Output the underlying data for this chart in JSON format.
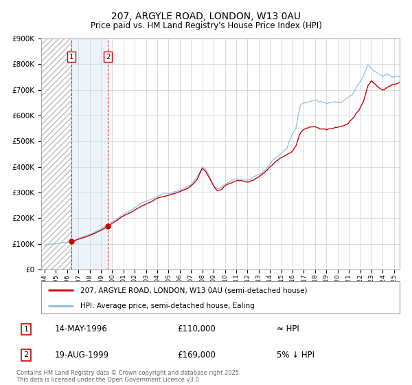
{
  "title": "207, ARGYLE ROAD, LONDON, W13 0AU",
  "subtitle": "Price paid vs. HM Land Registry's House Price Index (HPI)",
  "ylim": [
    0,
    900000
  ],
  "yticks": [
    0,
    100000,
    200000,
    300000,
    400000,
    500000,
    600000,
    700000,
    800000,
    900000
  ],
  "ytick_labels": [
    "£0",
    "£100K",
    "£200K",
    "£300K",
    "£400K",
    "£500K",
    "£600K",
    "£700K",
    "£800K",
    "£900K"
  ],
  "xlim_start": 1993.7,
  "xlim_end": 2025.5,
  "transactions": [
    {
      "num": 1,
      "date": "14-MAY-1996",
      "price": 110000,
      "year": 1996.37,
      "note": "≈ HPI"
    },
    {
      "num": 2,
      "date": "19-AUG-1999",
      "price": 169000,
      "year": 1999.63,
      "note": "5% ↓ HPI"
    }
  ],
  "legend_line1": "207, ARGYLE ROAD, LONDON, W13 0AU (semi-detached house)",
  "legend_line2": "HPI: Average price, semi-detached house, Ealing",
  "footer": "Contains HM Land Registry data © Crown copyright and database right 2025.\nThis data is licensed under the Open Government Licence v3.0.",
  "line_color_red": "#cc0000",
  "line_color_blue": "#88bbdd",
  "grid_color": "#cccccc",
  "background_color": "#ffffff",
  "transaction_box_color": "#cc0000",
  "shade_color": "#cce0f0"
}
